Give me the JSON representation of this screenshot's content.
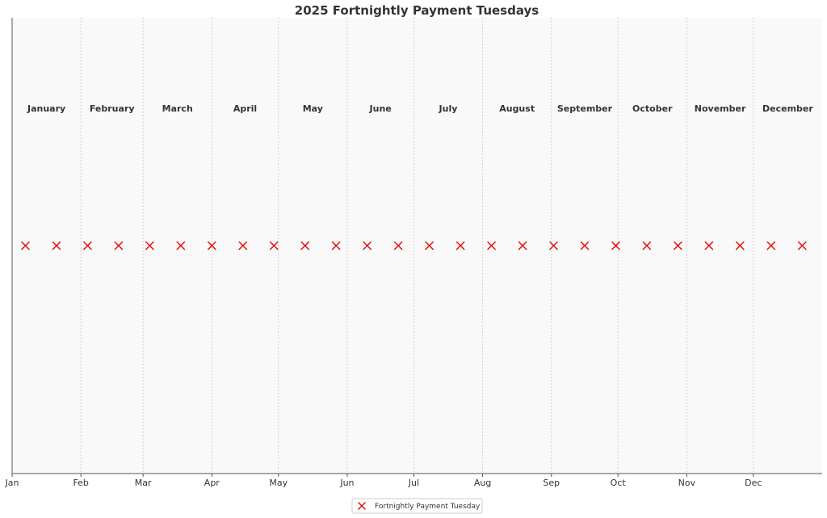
{
  "chart_data": {
    "type": "scatter",
    "title": "2025 Fortnightly Payment Tuesdays",
    "xlabel": "",
    "ylabel": "",
    "xlim": [
      "2025-01-01",
      "2026-01-01"
    ],
    "grid": "vertical dotted lines at month starts",
    "x_tick_labels": [
      "Jan",
      "Feb",
      "Mar",
      "Apr",
      "May",
      "Jun",
      "Jul",
      "Aug",
      "Sep",
      "Oct",
      "Nov",
      "Dec"
    ],
    "x_tick_dates": [
      "2025-01-01",
      "2025-02-01",
      "2025-03-01",
      "2025-04-01",
      "2025-05-01",
      "2025-06-01",
      "2025-07-01",
      "2025-08-01",
      "2025-09-01",
      "2025-10-01",
      "2025-11-01",
      "2025-12-01"
    ],
    "month_labels": [
      "January",
      "February",
      "March",
      "April",
      "May",
      "June",
      "July",
      "August",
      "September",
      "October",
      "November",
      "December"
    ],
    "legend_position": "bottom-center",
    "series": [
      {
        "name": "Fortnightly Payment Tuesday",
        "color": "#e01010",
        "marker": "x",
        "x": [
          "2025-01-07",
          "2025-01-21",
          "2025-02-04",
          "2025-02-18",
          "2025-03-04",
          "2025-03-18",
          "2025-04-01",
          "2025-04-15",
          "2025-04-29",
          "2025-05-13",
          "2025-05-27",
          "2025-06-10",
          "2025-06-24",
          "2025-07-08",
          "2025-07-22",
          "2025-08-05",
          "2025-08-19",
          "2025-09-02",
          "2025-09-16",
          "2025-09-30",
          "2025-10-14",
          "2025-10-28",
          "2025-11-11",
          "2025-11-25",
          "2025-12-09",
          "2025-12-23"
        ],
        "y": [
          1,
          1,
          1,
          1,
          1,
          1,
          1,
          1,
          1,
          1,
          1,
          1,
          1,
          1,
          1,
          1,
          1,
          1,
          1,
          1,
          1,
          1,
          1,
          1,
          1,
          1
        ]
      }
    ]
  }
}
